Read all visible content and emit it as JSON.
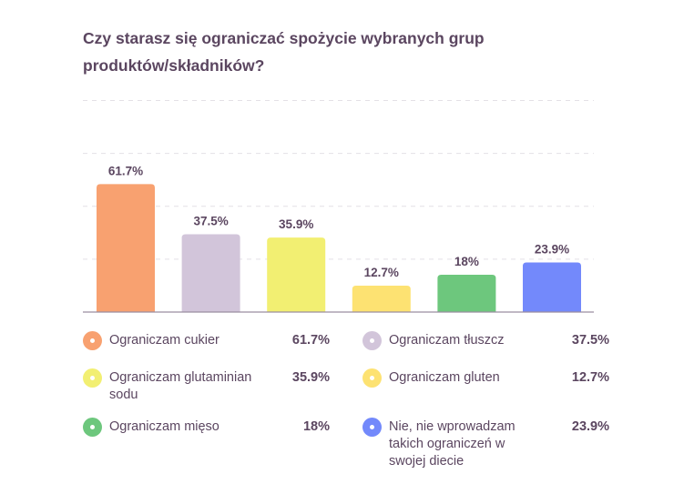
{
  "title": "Czy starasz się ograniczać spożycie wybranych grup produktów/składników?",
  "chart_data": {
    "type": "bar",
    "title": "Czy starasz się ograniczać spożycie wybranych grup produktów/składników?",
    "xlabel": "",
    "ylabel": "",
    "ylim": [
      0,
      102
    ],
    "grid": true,
    "legend_position": "bottom",
    "categories": [
      "Ograniczam cukier",
      "Ograniczam tłuszcz",
      "Ograniczam glutaminian sodu",
      "Ograniczam gluten",
      "Ograniczam mięso",
      "Nie, nie wprowadzam takich ograniczeń w swojej diecie"
    ],
    "values": [
      61.7,
      37.5,
      35.9,
      12.7,
      18,
      23.9
    ],
    "data_labels": [
      "61.7%",
      "37.5%",
      "35.9%",
      "12.7%",
      "18%",
      "23.9%"
    ],
    "colors": [
      "#f8a170",
      "#d2c5da",
      "#f2ef72",
      "#fde272",
      "#6dc77d",
      "#7389fb"
    ],
    "unit": "%"
  },
  "legend": [
    {
      "label": "Ograniczam cukier",
      "value": "61.7%",
      "color": "#f8a170"
    },
    {
      "label": "Ograniczam tłuszcz",
      "value": "37.5%",
      "color": "#d2c5da"
    },
    {
      "label": "Ograniczam glutaminian sodu",
      "value": "35.9%",
      "color": "#f2ef72"
    },
    {
      "label": "Ograniczam gluten",
      "value": "12.7%",
      "color": "#fde272"
    },
    {
      "label": "Ograniczam mięso",
      "value": "18%",
      "color": "#6dc77d"
    },
    {
      "label": "Nie, nie wprowadzam takich ograniczeń w swojej diecie",
      "value": "23.9%",
      "color": "#7389fb"
    }
  ]
}
